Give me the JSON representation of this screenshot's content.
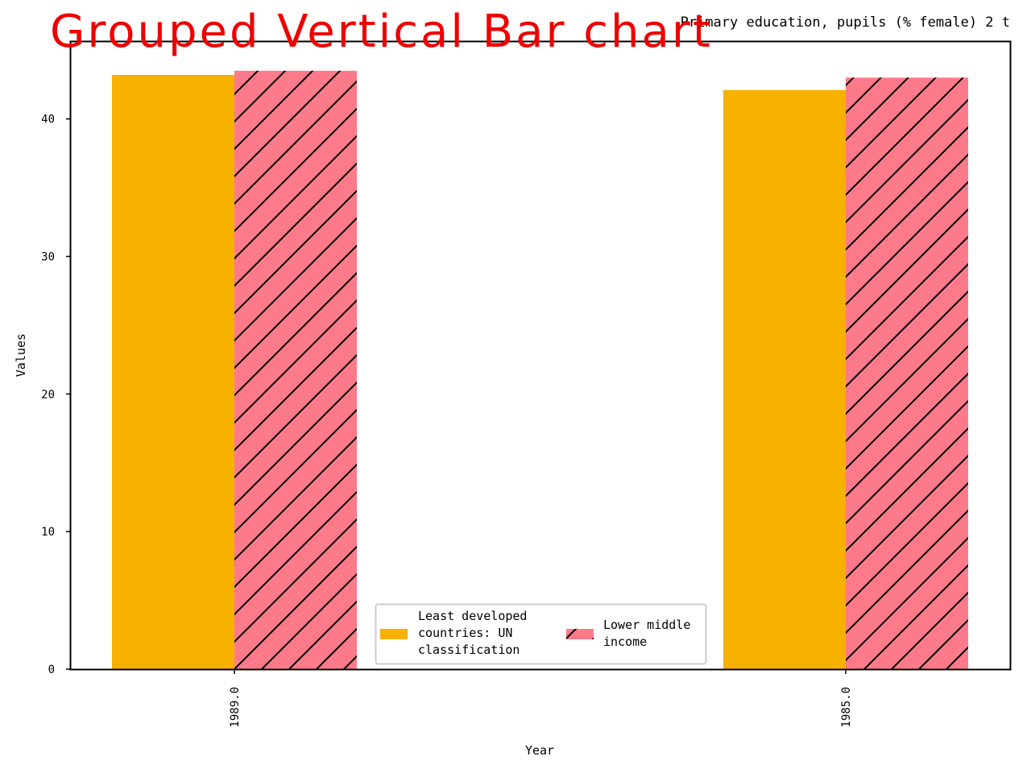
{
  "overlay_title": "Grouped Vertical Bar chart",
  "colors": {
    "series_1": "#f7b100",
    "series_2": "#fd7a8a",
    "hatch": "#000000",
    "overlay_title": "#ee0000"
  },
  "chart_data": {
    "type": "bar",
    "subtype": "grouped",
    "title": "Primary education, pupils (% female) 2 t",
    "xlabel": "Year",
    "ylabel": "Values",
    "categories": [
      "1989.0",
      "1985.0"
    ],
    "series": [
      {
        "name": "Least developed countries: UN classification",
        "legend_lines": [
          "Least developed",
          "countries: UN",
          "classification"
        ],
        "values": [
          43.2,
          42.1
        ],
        "hatch": "none",
        "color": "#f7b100"
      },
      {
        "name": "Lower middle income",
        "legend_lines": [
          "Lower middle",
          "income"
        ],
        "values": [
          43.5,
          43.0
        ],
        "hatch": "diagonal",
        "color": "#fd7a8a"
      }
    ],
    "ylim": [
      0,
      45.6
    ],
    "yticks": [
      0,
      10,
      20,
      30,
      40
    ],
    "ytick_labels": [
      "0",
      "10",
      "20",
      "30",
      "40"
    ],
    "xtick_rotation": 90,
    "grid": false,
    "legend_position": "bottom-center",
    "legend_columns": 2
  }
}
